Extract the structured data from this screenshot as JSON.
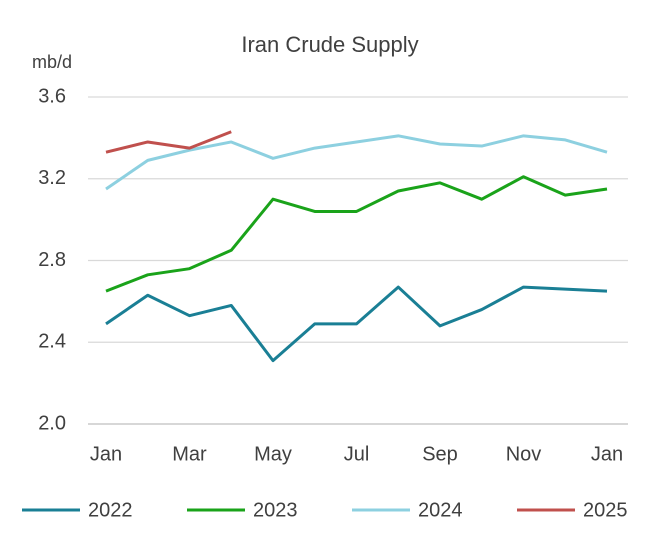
{
  "chart_data": {
    "type": "line",
    "title": "Iran Crude Supply",
    "y_label": "mb/d",
    "categories": [
      "Jan",
      null,
      "Mar",
      null,
      "May",
      null,
      "Jul",
      null,
      "Sep",
      null,
      "Nov",
      null,
      "Jan"
    ],
    "series": [
      {
        "name": "2022",
        "color": "#1a7f95",
        "values": [
          2.49,
          2.63,
          2.53,
          2.58,
          2.31,
          2.49,
          2.49,
          2.67,
          2.48,
          2.56,
          2.67,
          2.66,
          2.65
        ]
      },
      {
        "name": "2023",
        "color": "#1aa31a",
        "values": [
          2.65,
          2.73,
          2.76,
          2.85,
          3.1,
          3.04,
          3.04,
          3.14,
          3.18,
          3.1,
          3.21,
          3.12,
          3.15
        ]
      },
      {
        "name": "2024",
        "color": "#8dd0e0",
        "values": [
          3.15,
          3.29,
          3.34,
          3.38,
          3.3,
          3.35,
          3.38,
          3.41,
          3.37,
          3.36,
          3.41,
          3.39,
          3.33
        ]
      },
      {
        "name": "2025",
        "color": "#c0504d",
        "values": [
          3.33,
          3.38,
          3.35,
          3.43,
          null,
          null,
          null,
          null,
          null,
          null,
          null,
          null,
          null
        ]
      }
    ],
    "ylim": [
      2.0,
      3.6
    ],
    "yticks": [
      {
        "value": 2,
        "label": "2.0"
      },
      2.4,
      2.8,
      3.2,
      3.6
    ],
    "grid": true,
    "legend": "bottom"
  }
}
